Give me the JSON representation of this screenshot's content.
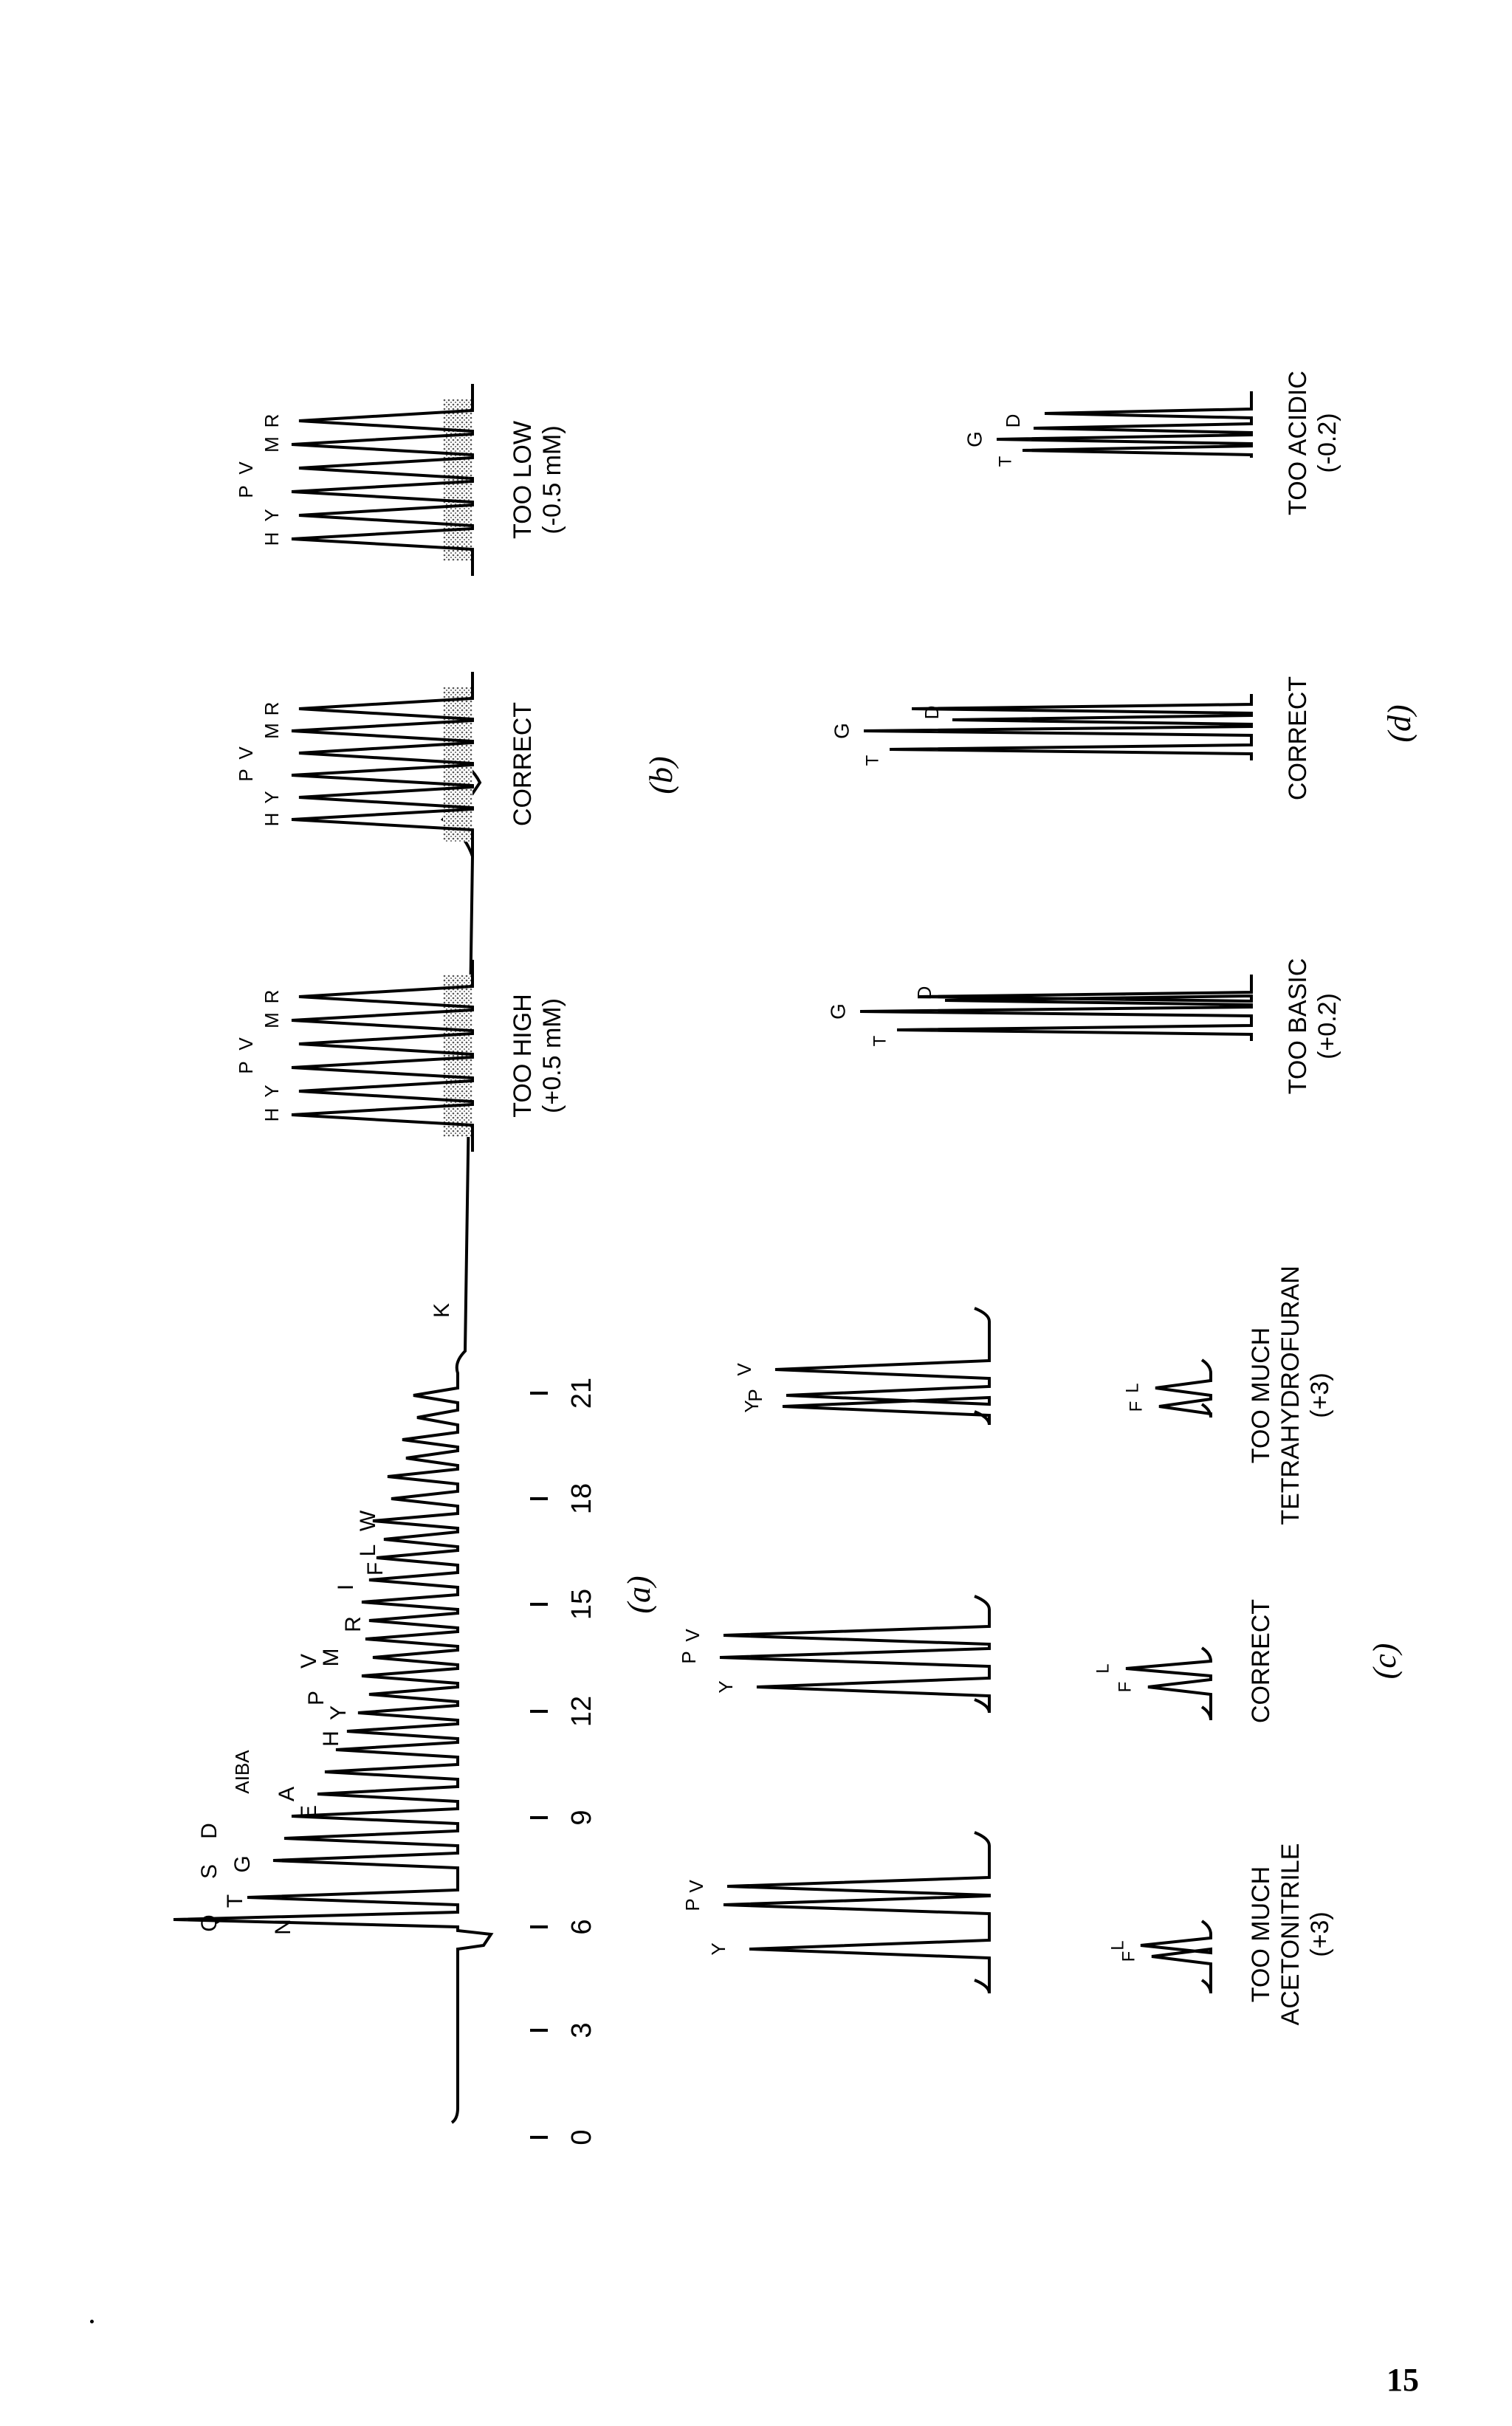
{
  "page_number": "15",
  "panel_a": {
    "caption": "(a)",
    "axis_ticks": [
      "0",
      "3",
      "6",
      "9",
      "12",
      "15",
      "18",
      "21"
    ],
    "peak_labels": [
      "Q",
      "S",
      "D",
      "T",
      "G",
      "N",
      "AIBA",
      "A",
      "E",
      "H",
      "Y",
      "P",
      "V",
      "M",
      "R",
      "I",
      "F",
      "L",
      "W",
      "K"
    ]
  },
  "panel_b": {
    "caption": "(b)",
    "peak_labels": [
      "H",
      "Y",
      "P",
      "V",
      "M",
      "R"
    ],
    "conditions": [
      {
        "line1": "TOO HIGH",
        "line2": "(+0.5 mM)"
      },
      {
        "line1": "CORRECT",
        "line2": ""
      },
      {
        "line1": "TOO LOW",
        "line2": "(-0.5 mM)"
      }
    ]
  },
  "panel_c": {
    "caption": "(c)",
    "peak_labels_top": [
      "Y",
      "P",
      "V"
    ],
    "peak_labels_bottom": [
      "F",
      "L"
    ],
    "conditions": [
      {
        "line1": "TOO MUCH",
        "line2": "ACETONITRILE",
        "line3": "(+3)"
      },
      {
        "line1": "CORRECT",
        "line2": "",
        "line3": ""
      },
      {
        "line1": "TOO MUCH",
        "line2": "TETRAHYDROFURAN",
        "line3": "(+3)"
      }
    ]
  },
  "panel_d": {
    "caption": "(d)",
    "peak_labels": [
      "G",
      "D",
      "T"
    ],
    "conditions": [
      {
        "line1": "TOO BASIC",
        "line2": "(+0.2)"
      },
      {
        "line1": "CORRECT",
        "line2": ""
      },
      {
        "line1": "TOO ACIDIC",
        "line2": "(-0.2)"
      }
    ]
  }
}
